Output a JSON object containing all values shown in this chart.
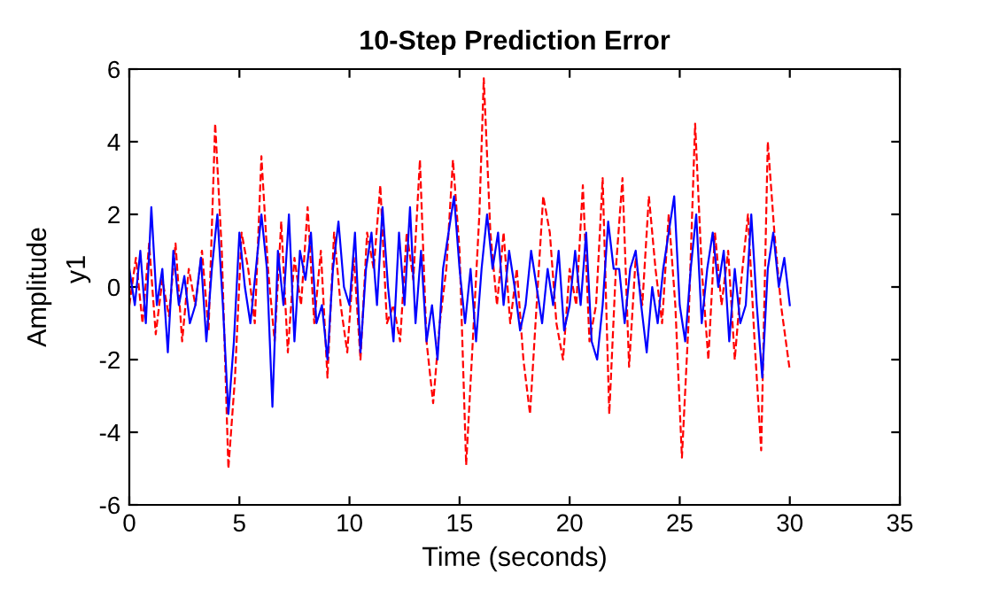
{
  "chart_data": {
    "type": "line",
    "title": "10-Step Prediction Error",
    "xlabel": "Time (seconds)",
    "ylabel": "Amplitude",
    "annotations": [
      "y1"
    ],
    "xlim": [
      0,
      35
    ],
    "xticks": [
      0,
      5,
      10,
      15,
      20,
      25,
      30,
      35
    ],
    "ylim": [
      -6,
      6
    ],
    "yticks": [
      -6,
      -4,
      -2,
      0,
      2,
      4,
      6
    ],
    "grid": false,
    "legend": false,
    "marker": "none",
    "series": [
      {
        "color": "#ff0000",
        "line_style": "dashed",
        "x": [
          0,
          0.3,
          0.6,
          0.9,
          1.2,
          1.5,
          1.8,
          2.1,
          2.4,
          2.7,
          3.0,
          3.3,
          3.6,
          3.9,
          4.2,
          4.5,
          4.8,
          5.1,
          5.4,
          5.7,
          6.0,
          6.3,
          6.6,
          6.9,
          7.2,
          7.5,
          7.8,
          8.1,
          8.4,
          8.7,
          9.0,
          9.3,
          9.6,
          9.9,
          10.2,
          10.5,
          10.8,
          11.1,
          11.4,
          11.7,
          12.0,
          12.3,
          12.6,
          12.9,
          13.2,
          13.5,
          13.8,
          14.1,
          14.4,
          14.7,
          15.0,
          15.3,
          15.6,
          15.9,
          16.1,
          16.4,
          16.7,
          17.0,
          17.3,
          17.6,
          17.9,
          18.2,
          18.5,
          18.8,
          19.1,
          19.4,
          19.7,
          20.0,
          20.3,
          20.6,
          20.9,
          21.2,
          21.5,
          21.8,
          22.1,
          22.4,
          22.7,
          23.0,
          23.3,
          23.6,
          23.9,
          24.2,
          24.5,
          24.8,
          25.1,
          25.4,
          25.7,
          26.0,
          26.3,
          26.6,
          26.9,
          27.2,
          27.5,
          27.8,
          28.1,
          28.4,
          28.7,
          29.0,
          29.3,
          29.6,
          30.0
        ],
        "values": [
          -0.5,
          0.8,
          -1.0,
          1.2,
          -1.3,
          0.2,
          -0.8,
          1.2,
          -1.5,
          0.5,
          -0.5,
          1.0,
          -1.2,
          4.5,
          1.0,
          -5.0,
          -2.5,
          1.5,
          0.5,
          -1.0,
          3.6,
          0.5,
          -1.5,
          1.8,
          -1.8,
          0.8,
          -0.5,
          2.2,
          -1.0,
          1.0,
          -2.5,
          1.5,
          -0.5,
          -1.8,
          0.8,
          -2.0,
          1.5,
          0.5,
          2.8,
          -1.0,
          -0.5,
          -1.5,
          1.5,
          0.2,
          3.5,
          -1.5,
          -3.2,
          -1.0,
          0.5,
          3.5,
          1.0,
          -4.9,
          -1.5,
          2.0,
          5.75,
          1.5,
          -0.5,
          1.5,
          -1.0,
          0.5,
          -2.0,
          -3.5,
          -0.5,
          2.5,
          1.5,
          -1.0,
          -2.0,
          0.5,
          -0.5,
          2.8,
          -1.5,
          -0.5,
          3.0,
          -3.5,
          0.5,
          3.0,
          -2.2,
          0.8,
          -0.5,
          2.5,
          0.5,
          -1.0,
          2.0,
          -0.5,
          -4.7,
          -1.0,
          4.5,
          0.5,
          -2.0,
          1.5,
          -0.5,
          1.0,
          -2.0,
          0.2,
          2.0,
          -1.5,
          -4.5,
          4.0,
          1.5,
          -0.5,
          -2.3
        ]
      },
      {
        "color": "#0000ff",
        "line_style": "solid",
        "x": [
          0,
          0.25,
          0.5,
          0.75,
          1.0,
          1.25,
          1.5,
          1.75,
          2.0,
          2.25,
          2.5,
          2.75,
          3.0,
          3.25,
          3.5,
          3.75,
          4.0,
          4.25,
          4.5,
          4.75,
          5.0,
          5.25,
          5.5,
          5.75,
          6.0,
          6.25,
          6.5,
          6.75,
          7.0,
          7.25,
          7.5,
          7.75,
          8.0,
          8.25,
          8.5,
          8.75,
          9.0,
          9.25,
          9.5,
          9.75,
          10.0,
          10.25,
          10.5,
          10.75,
          11.0,
          11.25,
          11.5,
          11.75,
          12.0,
          12.25,
          12.5,
          12.75,
          13.0,
          13.25,
          13.5,
          13.75,
          14.0,
          14.25,
          14.5,
          14.75,
          15.0,
          15.25,
          15.5,
          15.75,
          16.0,
          16.25,
          16.5,
          16.75,
          17.0,
          17.25,
          17.5,
          17.75,
          18.0,
          18.25,
          18.5,
          18.75,
          19.0,
          19.25,
          19.5,
          19.75,
          20.0,
          20.25,
          20.5,
          20.75,
          21.0,
          21.25,
          21.5,
          21.75,
          22.0,
          22.25,
          22.5,
          22.75,
          23.0,
          23.25,
          23.5,
          23.75,
          24.0,
          24.25,
          24.5,
          24.75,
          25.0,
          25.25,
          25.5,
          25.75,
          26.0,
          26.25,
          26.5,
          26.75,
          27.0,
          27.25,
          27.5,
          27.75,
          28.0,
          28.25,
          28.5,
          28.75,
          29.0,
          29.25,
          29.5,
          29.75,
          30.0
        ],
        "values": [
          0.5,
          -0.5,
          1.0,
          -1.0,
          2.2,
          -0.5,
          0.5,
          -1.8,
          1.0,
          -0.5,
          0.3,
          -1.0,
          -0.5,
          0.8,
          -1.5,
          0.5,
          2.0,
          -0.5,
          -3.5,
          -1.5,
          1.5,
          0.0,
          -1.0,
          0.5,
          2.0,
          0.5,
          -3.3,
          1.0,
          -0.5,
          2.0,
          -1.5,
          1.0,
          0.2,
          1.5,
          -1.0,
          -0.5,
          -2.0,
          0.5,
          1.8,
          0.0,
          -0.5,
          1.5,
          -1.8,
          0.5,
          1.5,
          -0.5,
          2.2,
          0.0,
          -1.5,
          1.5,
          -0.5,
          2.2,
          -1.0,
          1.0,
          -1.5,
          -0.5,
          -2.0,
          0.5,
          1.5,
          2.5,
          0.5,
          -1.0,
          0.5,
          -1.5,
          0.5,
          2.0,
          0.5,
          1.5,
          -0.5,
          1.0,
          0.0,
          -1.2,
          -0.5,
          1.0,
          0.0,
          -1.0,
          0.5,
          -0.5,
          1.0,
          -1.2,
          -0.5,
          1.0,
          -0.5,
          1.5,
          -1.5,
          -2.0,
          -0.5,
          1.8,
          0.5,
          0.5,
          -1.0,
          0.5,
          1.0,
          -0.5,
          -1.8,
          0.0,
          -1.0,
          0.5,
          1.5,
          2.5,
          -0.5,
          -1.5,
          0.5,
          2.0,
          -1.0,
          0.5,
          1.5,
          0.0,
          1.0,
          -1.5,
          0.5,
          -1.0,
          -0.5,
          2.0,
          -0.5,
          -2.5,
          0.5,
          1.5,
          0.0,
          0.8,
          -0.5
        ]
      }
    ]
  }
}
